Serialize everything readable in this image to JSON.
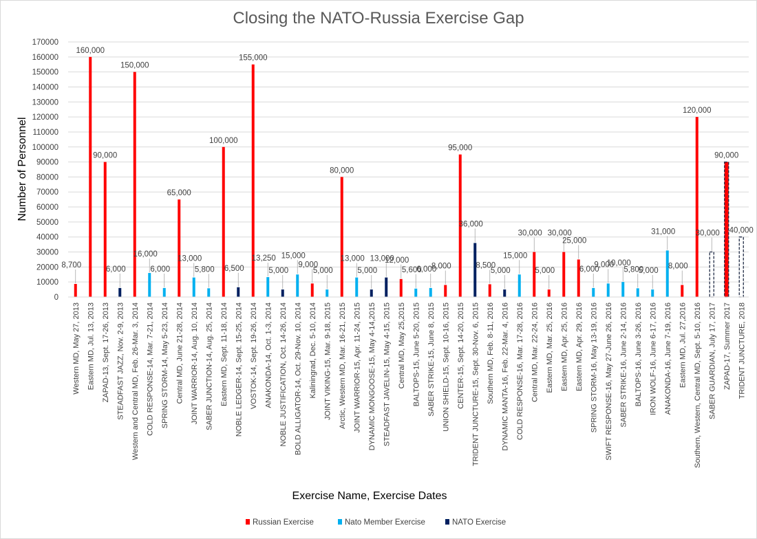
{
  "chart_data": {
    "type": "bar",
    "title": "Closing the NATO-Russia Exercise Gap",
    "xlabel": "Exercise Name, Exercise Dates",
    "ylabel": "Number of Personnel",
    "ylim": [
      0,
      170000
    ],
    "ytick_step": 10000,
    "grid": true,
    "legend_position": "bottom",
    "colors": {
      "russian": "#ff0000",
      "nato_member": "#00b0f0",
      "nato": "#002060",
      "grid": "#d9d9d9",
      "text": "#404040"
    },
    "series": [
      {
        "key": "russian",
        "name": "Russian Exercise"
      },
      {
        "key": "nato_member",
        "name": "Nato Member Exercise"
      },
      {
        "key": "nato",
        "name": "NATO Exercise"
      }
    ],
    "items": [
      {
        "category": "Western MD, May 27, 2013",
        "value": 8700,
        "label": "8,700",
        "series": "russian"
      },
      {
        "category": "Eastern MD, Jul. 13, 2013",
        "value": 160000,
        "label": "160,000",
        "series": "russian"
      },
      {
        "category": "ZAPAD-13, Sept. 17-26, 2013",
        "value": 90000,
        "label": "90,000",
        "series": "russian"
      },
      {
        "category": "STEADFAST JAZZ, Nov. 2-9, 2013",
        "value": 6000,
        "label": "6,000",
        "series": "nato"
      },
      {
        "category": "Western and Central MD, Feb. 26-Mar. 3, 2014",
        "value": 150000,
        "label": "150,000",
        "series": "russian"
      },
      {
        "category": "COLD RESPONSE-14, Mar. 7-21, 2014",
        "value": 16000,
        "label": "16,000",
        "series": "nato_member"
      },
      {
        "category": "SPRING STORM-14, May 5-23, 2014",
        "value": 6000,
        "label": "6,000",
        "series": "nato_member"
      },
      {
        "category": "Central MD, June 21-28, 2014",
        "value": 65000,
        "label": "65,000",
        "series": "russian"
      },
      {
        "category": "JOINT WARRIOR-14, Aug. 10, 2014",
        "value": 13000,
        "label": "13,000",
        "series": "nato_member"
      },
      {
        "category": "SABER JUNCTION-14, Aug. 25, 2014",
        "value": 5800,
        "label": "5,800",
        "series": "nato_member"
      },
      {
        "category": "Eastern MD, Sept. 11-18, 2014",
        "value": 100000,
        "label": "100,000",
        "series": "russian"
      },
      {
        "category": "NOBLE LEDGER-14, Sept. 15-25, 2014",
        "value": 6500,
        "label": "6,500",
        "series": "nato"
      },
      {
        "category": "VOSTOK-14, Sept. 19-26, 2014",
        "value": 155000,
        "label": "155,000",
        "series": "russian"
      },
      {
        "category": "ANAKONDA-14, Oct. 1-3, 2014",
        "value": 13250,
        "label": "13,250",
        "series": "nato_member"
      },
      {
        "category": "NOBLE JUSTIFICATION, Oct. 14-26, 2014",
        "value": 5000,
        "label": "5,000",
        "series": "nato"
      },
      {
        "category": "BOLD ALLIGATOR-14, Oct. 29-Nov. 10, 2014",
        "value": 15000,
        "label": "15,000",
        "series": "nato_member"
      },
      {
        "category": "Kaliningrad, Dec. 5-10, 2014",
        "value": 9000,
        "label": "9,000",
        "series": "russian"
      },
      {
        "category": "JOINT VIKING-15, Mar. 9-18, 2015",
        "value": 5000,
        "label": "5,000",
        "series": "nato_member"
      },
      {
        "category": "Arctic, Western MD, Mar. 16-21, 2015",
        "value": 80000,
        "label": "80,000",
        "series": "russian"
      },
      {
        "category": "JOINT WARRIOR-15, Apr. 11-24, 2015",
        "value": 13000,
        "label": "13,000",
        "series": "nato_member"
      },
      {
        "category": "DYNAMIC MONGOOSE-15, May 4-14,2015",
        "value": 5000,
        "label": "5,000",
        "series": "nato"
      },
      {
        "category": "STEADFAST JAVELIN-15, May 4-15, 2015",
        "value": 13000,
        "label": "13,000",
        "series": "nato"
      },
      {
        "category": "Central MD, May 25,2015",
        "value": 12000,
        "label": "12,000",
        "series": "russian"
      },
      {
        "category": "BALTOPS-15, June 5-20, 2015",
        "value": 5600,
        "label": "5,600",
        "series": "nato_member"
      },
      {
        "category": "SABER STRIKE-15, June 8, 2015",
        "value": 6000,
        "label": "6,000",
        "series": "nato_member"
      },
      {
        "category": "UNION SHIELD-15, Sept. 10-16, 2015",
        "value": 8000,
        "label": "8,000",
        "series": "russian"
      },
      {
        "category": "CENTER-15, Sept. 14-20, 2015",
        "value": 95000,
        "label": "95,000",
        "series": "russian"
      },
      {
        "category": "TRIDENT JUNCTURE-15, Sept. 30-Nov. 6, 2015",
        "value": 36000,
        "label": "36,000",
        "series": "nato"
      },
      {
        "category": "Southern MD, Feb. 8-11, 2016",
        "value": 8500,
        "label": "8,500",
        "series": "russian"
      },
      {
        "category": "DYNAMIC MANTA-16, Feb. 22-Mar. 4, 2016",
        "value": 5000,
        "label": "5,000",
        "series": "nato"
      },
      {
        "category": "COLD RESPONSE-16, Mar. 17-28, 2016",
        "value": 15000,
        "label": "15,000",
        "series": "nato_member"
      },
      {
        "category": "Central MD, Mar. 22-24, 2016",
        "value": 30000,
        "label": "30,000",
        "series": "russian"
      },
      {
        "category": "Eastern MD, Mar. 25, 2016",
        "value": 5000,
        "label": "5,000",
        "series": "russian"
      },
      {
        "category": "Eastern MD, Apr. 25, 2016",
        "value": 30000,
        "label": "30,000",
        "series": "russian"
      },
      {
        "category": "Eastern MD, Apr. 29, 2016",
        "value": 25000,
        "label": "25,000",
        "series": "russian"
      },
      {
        "category": "SPRING STORM-16, May 13-19, 2016",
        "value": 6000,
        "label": "6,000",
        "series": "nato_member"
      },
      {
        "category": "SWIFT RESPONSE-16, May 27-June 26, 2016",
        "value": 9000,
        "label": "9,000",
        "series": "nato_member"
      },
      {
        "category": "SABER STRIKE-16, June 2-14, 2016",
        "value": 10000,
        "label": "10,000",
        "series": "nato_member"
      },
      {
        "category": "BALTOPS-16, June 3-26, 2016",
        "value": 5800,
        "label": "5,800",
        "series": "nato_member"
      },
      {
        "category": "IRON WOLF-16, June 6-17, 2016",
        "value": 5000,
        "label": "5,000",
        "series": "nato_member"
      },
      {
        "category": "ANAKONDA-16, June 7-19, 2016",
        "value": 31000,
        "label": "31,000",
        "series": "nato_member"
      },
      {
        "category": "Eastern MD, Jul. 27,2016",
        "value": 8000,
        "label": "8,000",
        "series": "russian"
      },
      {
        "category": "Southern, Western, Central MD, Sept. 5-10, 2016",
        "value": 120000,
        "label": "120,000",
        "series": "russian"
      },
      {
        "category": "SABER GUARDIAN, July 17, 2017",
        "value": 30000,
        "label": "30,000",
        "series": "nato",
        "style": "dashed"
      },
      {
        "category": "ZAPAD-17, Summer 2017",
        "value": 90000,
        "label": "90,000",
        "series": "russian",
        "style": "dashed"
      },
      {
        "category": "TRIDENT JUNCTURE, 2018",
        "value": 40000,
        "label": "40,000",
        "series": "nato",
        "style": "dashed"
      }
    ]
  }
}
